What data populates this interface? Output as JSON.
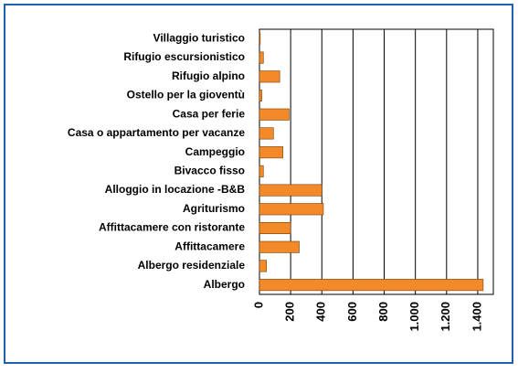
{
  "chart_data": {
    "type": "bar",
    "orientation": "horizontal",
    "categories": [
      "Villaggio turistico",
      "Rifugio escursionistico",
      "Rifugio alpino",
      "Ostello per la gioventù",
      "Casa per ferie",
      "Casa o appartamento per vacanze",
      "Campeggio",
      "Bivacco fisso",
      "Alloggio in locazione -B&B",
      "Agriturismo",
      "Affittacamere con ristorante",
      "Affittacamere",
      "Albergo residenziale",
      "Albergo"
    ],
    "values": [
      5,
      25,
      130,
      15,
      190,
      90,
      150,
      25,
      400,
      410,
      200,
      255,
      45,
      1435
    ],
    "color": "#f28a2a",
    "xlim": [
      0,
      1500
    ],
    "xticks": [
      0,
      200,
      400,
      600,
      800,
      {
        "value": 1000,
        "label": "1.000"
      },
      {
        "value": 1200,
        "label": "1.200"
      },
      {
        "value": 1400,
        "label": "1.400"
      }
    ],
    "grid": true
  }
}
